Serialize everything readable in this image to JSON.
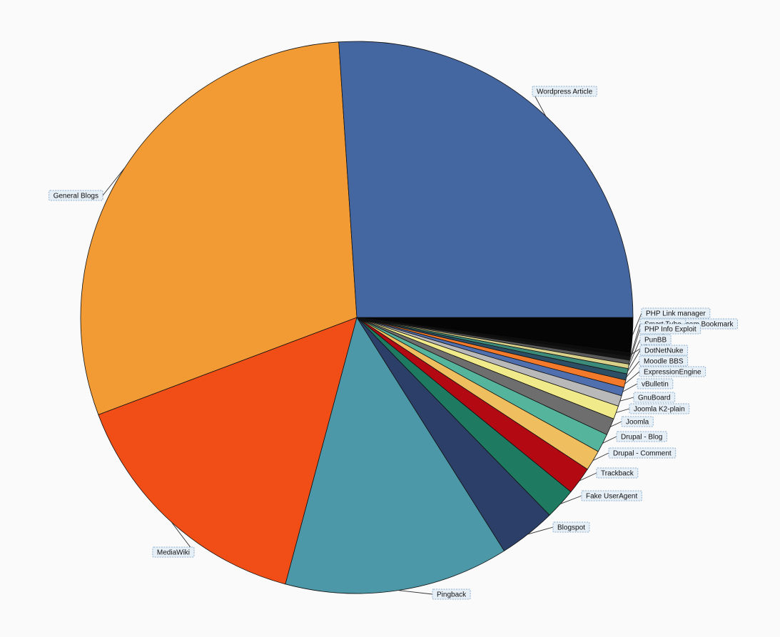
{
  "chart_data": {
    "type": "pie",
    "slices": [
      {
        "label": "Wordpress Article",
        "value": 25.0,
        "color": "#4466a1"
      },
      {
        "label": "General Blogs",
        "value": 28.5,
        "color": "#f29b35"
      },
      {
        "label": "MediaWiki",
        "value": 14.5,
        "color": "#f04e16"
      },
      {
        "label": "Pingback",
        "value": 12.6,
        "color": "#4d98a8"
      },
      {
        "label": "Blogspot",
        "value": 3.2,
        "color": "#2c3f69"
      },
      {
        "label": "Fake UserAgent",
        "value": 1.75,
        "color": "#1f7a62"
      },
      {
        "label": "Trackback",
        "value": 1.55,
        "color": "#b30913"
      },
      {
        "label": "Drupal - Comment",
        "value": 1.15,
        "color": "#efbf5f"
      },
      {
        "label": "Drupal - Blog",
        "value": 1.05,
        "color": "#55b49c"
      },
      {
        "label": "Joomla",
        "value": 0.95,
        "color": "#6e6e6e"
      },
      {
        "label": "Joomla K2-plain",
        "value": 0.75,
        "color": "#f1ea8a"
      },
      {
        "label": "GnuBoard",
        "value": 0.6,
        "color": "#b9b9b9"
      },
      {
        "label": "vBulletin",
        "value": 0.48,
        "color": "#4f6fae"
      },
      {
        "label": "ExpressionEngine",
        "value": 0.42,
        "color": "#f27a2a"
      },
      {
        "label": "Moodle BBS",
        "value": 0.35,
        "color": "#2c4f66"
      },
      {
        "label": "DotNetNuke",
        "value": 0.3,
        "color": "#3c8a7a"
      },
      {
        "label": "PunBB",
        "value": 0.25,
        "color": "#d9d08a"
      },
      {
        "label": "PHP Info Exploit",
        "value": 0.22,
        "color": "#5a5a5a"
      },
      {
        "label": "Smart Tube",
        "value": 0.2,
        "color": "#151515"
      },
      {
        "label": ".com Bookmark",
        "value": 0.2,
        "color": "#0c0c0c"
      },
      {
        "label": "PHP Link manager",
        "value": 1.98,
        "color": "#050505"
      }
    ]
  }
}
